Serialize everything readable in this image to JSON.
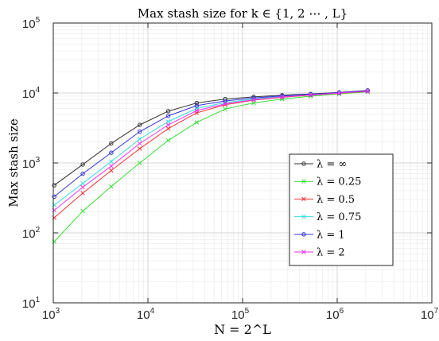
{
  "chart_data": {
    "type": "line",
    "title": "Max stash size for k ∈ {1, 2 ⋯ , L}",
    "xlabel": "N = 2^L",
    "ylabel": "Max stash size",
    "x_scale": "log10",
    "y_scale": "log10",
    "xlim": [
      1000,
      10000000
    ],
    "ylim": [
      10,
      100000
    ],
    "x_ticks": [
      {
        "base": "10",
        "exp": "3"
      },
      {
        "base": "10",
        "exp": "4"
      },
      {
        "base": "10",
        "exp": "5"
      },
      {
        "base": "10",
        "exp": "6"
      },
      {
        "base": "10",
        "exp": "7"
      }
    ],
    "y_ticks": [
      {
        "base": "10",
        "exp": "1"
      },
      {
        "base": "10",
        "exp": "2"
      },
      {
        "base": "10",
        "exp": "3"
      },
      {
        "base": "10",
        "exp": "4"
      },
      {
        "base": "10",
        "exp": "5"
      }
    ],
    "grid": true,
    "minor_grid": true,
    "legend_position": "lower-right",
    "x": [
      1024,
      2048,
      4096,
      8192,
      16384,
      32768,
      65536,
      131072,
      262144,
      524288,
      1048576,
      2097152
    ],
    "series": [
      {
        "name": "λ = ∞",
        "color": "#333333",
        "marker": "circle",
        "values": [
          480,
          950,
          1900,
          3500,
          5500,
          7200,
          8200,
          8800,
          9300,
          9700,
          10200,
          10900
        ]
      },
      {
        "name": "λ = 0.25",
        "color": "#33dd33",
        "marker": "x",
        "values": [
          75,
          205,
          460,
          1000,
          2100,
          3800,
          5900,
          7200,
          8200,
          9000,
          9700,
          10400
        ]
      },
      {
        "name": "λ = 0.5",
        "color": "#ee3333",
        "marker": "x",
        "values": [
          165,
          370,
          780,
          1600,
          3100,
          5200,
          6800,
          7900,
          8700,
          9300,
          9900,
          10500
        ]
      },
      {
        "name": "λ = 0.75",
        "color": "#33dddd",
        "marker": "x",
        "values": [
          250,
          510,
          1050,
          2200,
          3900,
          6000,
          7300,
          8200,
          8900,
          9400,
          10000,
          10600
        ]
      },
      {
        "name": "λ = 1",
        "color": "#3333dd",
        "marker": "circle",
        "values": [
          330,
          700,
          1400,
          2800,
          4700,
          6600,
          7700,
          8500,
          9100,
          9600,
          10100,
          10800
        ]
      },
      {
        "name": "λ = 2",
        "color": "#ee33ee",
        "marker": "x",
        "values": [
          210,
          450,
          900,
          1900,
          3500,
          5600,
          7000,
          8000,
          8800,
          9400,
          10000,
          10600
        ]
      }
    ]
  }
}
